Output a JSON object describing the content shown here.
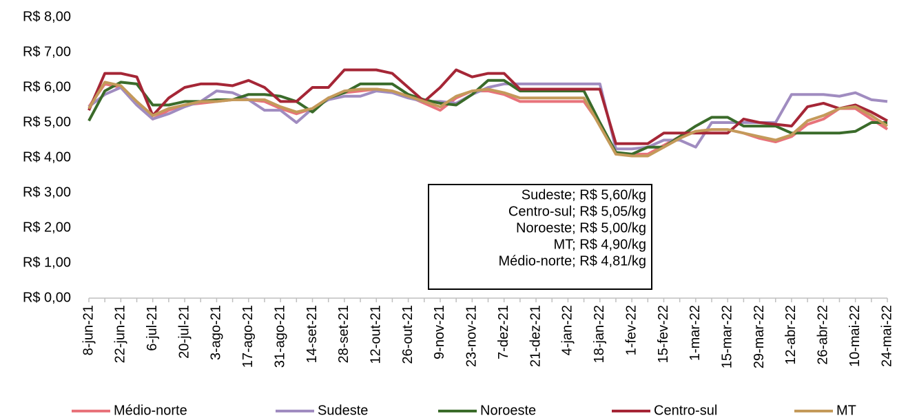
{
  "chart_data": {
    "type": "line",
    "categories": [
      "8-jun-21",
      null,
      "22-jun-21",
      null,
      "6-jul-21",
      null,
      "20-jul-21",
      null,
      "3-ago-21",
      null,
      "17-ago-21",
      null,
      "31-ago-21",
      null,
      "14-set-21",
      null,
      "28-set-21",
      null,
      "12-out-21",
      null,
      "26-out-21",
      null,
      "9-nov-21",
      null,
      "23-nov-21",
      null,
      "7-dez-21",
      null,
      "21-dez-21",
      null,
      "4-jan-22",
      null,
      "18-jan-22",
      null,
      "1-fev-22",
      null,
      "15-fev-22",
      null,
      "1-mar-22",
      null,
      "15-mar-22",
      null,
      "29-mar-22",
      null,
      "12-abr-22",
      null,
      "26-abr-22",
      null,
      "10-mai-22",
      null,
      "24-mai-22"
    ],
    "series": [
      {
        "name": "Médio-norte",
        "color": "#e8737b",
        "values": [
          5.45,
          6.1,
          6.0,
          5.5,
          5.1,
          5.35,
          5.5,
          5.55,
          5.6,
          5.65,
          5.65,
          5.6,
          5.4,
          5.25,
          5.4,
          5.7,
          5.85,
          5.9,
          5.95,
          5.9,
          5.75,
          5.55,
          5.35,
          5.7,
          5.9,
          5.9,
          5.8,
          5.6,
          5.6,
          5.6,
          5.6,
          5.6,
          4.95,
          4.1,
          4.1,
          4.1,
          4.35,
          4.6,
          4.75,
          4.8,
          4.8,
          4.7,
          4.55,
          4.45,
          4.6,
          4.95,
          5.1,
          5.4,
          5.4,
          5.1,
          4.81
        ]
      },
      {
        "name": "Sudeste",
        "color": "#a08cc0",
        "values": [
          5.45,
          5.8,
          6.0,
          5.5,
          5.1,
          5.25,
          5.45,
          5.6,
          5.9,
          5.85,
          5.65,
          5.35,
          5.35,
          5.0,
          5.4,
          5.65,
          5.75,
          5.75,
          5.9,
          5.85,
          5.7,
          5.6,
          5.6,
          5.55,
          5.8,
          6.0,
          6.1,
          6.1,
          6.1,
          6.1,
          6.1,
          6.1,
          6.1,
          4.25,
          4.25,
          4.3,
          4.5,
          4.5,
          4.3,
          5.0,
          5.0,
          5.0,
          5.0,
          5.0,
          5.8,
          5.8,
          5.8,
          5.75,
          5.85,
          5.65,
          5.6
        ]
      },
      {
        "name": "Noroeste",
        "color": "#3a6b2a",
        "values": [
          5.05,
          5.9,
          6.15,
          6.1,
          5.5,
          5.5,
          5.6,
          5.6,
          5.65,
          5.65,
          5.8,
          5.8,
          5.75,
          5.6,
          5.3,
          5.7,
          5.85,
          6.1,
          6.1,
          6.1,
          5.8,
          5.65,
          5.55,
          5.5,
          5.8,
          6.2,
          6.2,
          5.9,
          5.9,
          5.9,
          5.9,
          5.9,
          5.0,
          4.15,
          4.1,
          4.3,
          4.3,
          4.6,
          4.9,
          5.15,
          5.15,
          4.9,
          4.9,
          4.9,
          4.7,
          4.7,
          4.7,
          4.7,
          4.75,
          5.0,
          5.0
        ]
      },
      {
        "name": "Centro-sul",
        "color": "#a52636",
        "values": [
          5.35,
          6.4,
          6.4,
          6.3,
          5.2,
          5.7,
          6.0,
          6.1,
          6.1,
          6.05,
          6.2,
          6.0,
          5.6,
          5.6,
          6.0,
          6.0,
          6.5,
          6.5,
          6.5,
          6.4,
          6.0,
          5.6,
          6.0,
          6.5,
          6.3,
          6.4,
          6.4,
          5.95,
          5.95,
          5.95,
          5.95,
          5.95,
          5.95,
          4.4,
          4.4,
          4.4,
          4.7,
          4.7,
          4.7,
          4.7,
          4.7,
          5.1,
          5.0,
          4.95,
          4.9,
          5.45,
          5.55,
          5.4,
          5.5,
          5.3,
          5.05
        ]
      },
      {
        "name": "MT",
        "color": "#c49a5a",
        "values": [
          5.4,
          6.15,
          6.05,
          5.6,
          5.2,
          5.4,
          5.5,
          5.6,
          5.6,
          5.65,
          5.65,
          5.65,
          5.45,
          5.3,
          5.4,
          5.7,
          5.9,
          5.95,
          5.95,
          5.9,
          5.75,
          5.6,
          5.45,
          5.75,
          5.9,
          5.95,
          5.85,
          5.7,
          5.7,
          5.7,
          5.7,
          5.7,
          4.9,
          4.1,
          4.05,
          4.05,
          4.3,
          4.55,
          4.75,
          4.8,
          4.8,
          4.7,
          4.6,
          4.5,
          4.65,
          5.05,
          5.2,
          5.4,
          5.45,
          5.2,
          4.9
        ]
      }
    ],
    "ylim": [
      0,
      8
    ],
    "yticks": [
      {
        "value": 0,
        "label": "R$ 0,00"
      },
      {
        "value": 1,
        "label": "R$ 1,00"
      },
      {
        "value": 2,
        "label": "R$ 2,00"
      },
      {
        "value": 3,
        "label": "R$ 3,00"
      },
      {
        "value": 4,
        "label": "R$ 4,00"
      },
      {
        "value": 5,
        "label": "R$ 5,00"
      },
      {
        "value": 6,
        "label": "R$ 6,00"
      },
      {
        "value": 7,
        "label": "R$ 7,00"
      },
      {
        "value": 8,
        "label": "R$ 8,00"
      }
    ],
    "annotations": [
      "Sudeste; R$ 5,60/kg",
      "Centro-sul; R$ 5,05/kg",
      "Noroeste; R$ 5,00/kg",
      "MT; R$ 4,90/kg",
      "Médio-norte; R$ 4,81/kg"
    ],
    "legend": "bottom",
    "grid": false
  }
}
